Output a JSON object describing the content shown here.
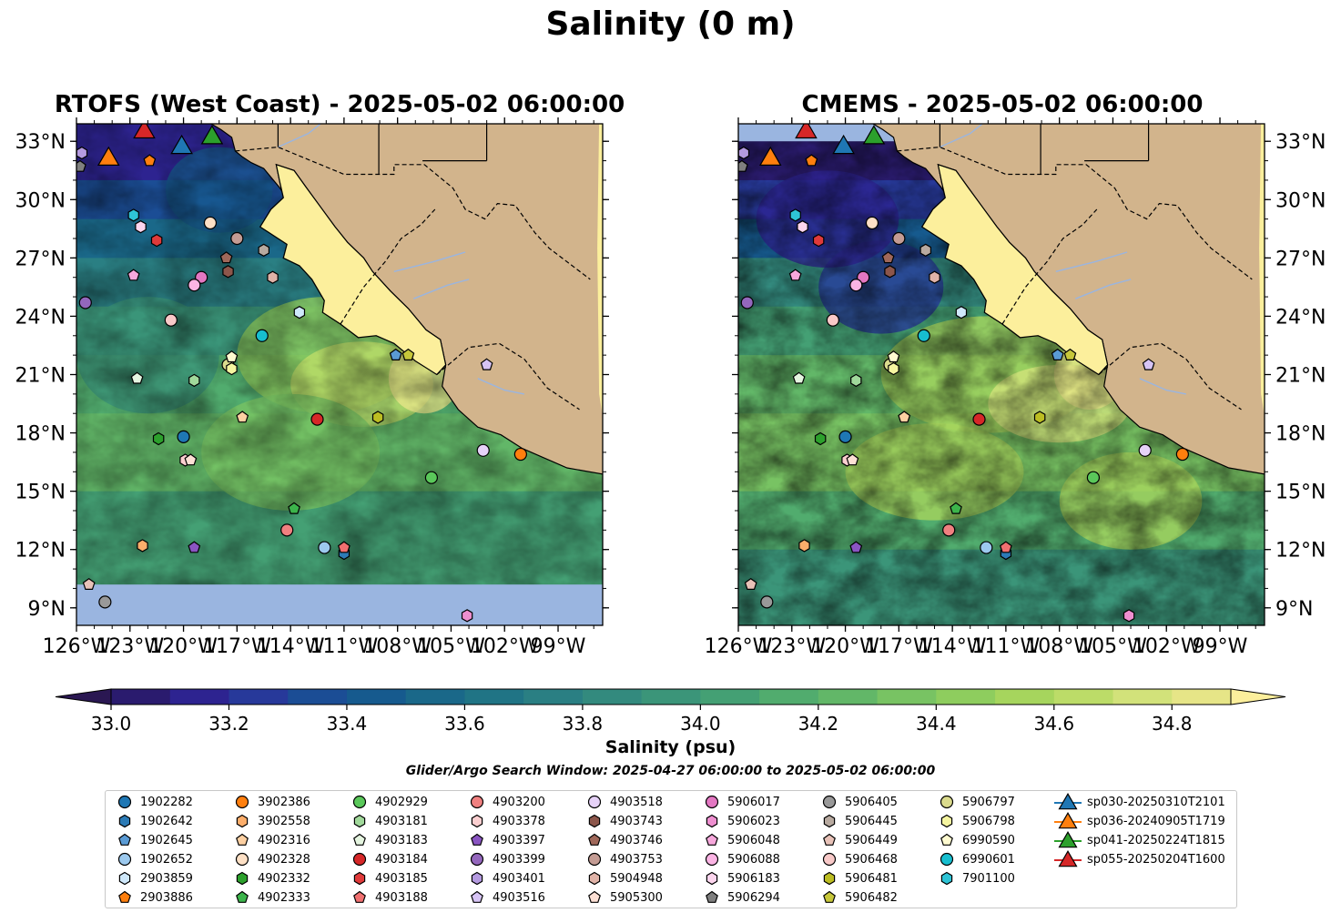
{
  "figure": {
    "title": "Salinity (0 m)",
    "window_note": "Glider/Argo Search Window: 2025-04-27 06:00:00 to 2025-05-02 06:00:00"
  },
  "colorbar": {
    "label": "Salinity (psu)",
    "min": 33.0,
    "max": 34.9,
    "step": 0.1,
    "ticks": [
      "33.0",
      "33.2",
      "33.4",
      "33.6",
      "33.8",
      "34.0",
      "34.2",
      "34.4",
      "34.6",
      "34.8"
    ],
    "under_color": "#2a1752",
    "over_color": "#fcef9c",
    "colors": [
      "#2a1b6e",
      "#2d2390",
      "#27399a",
      "#1b4d95",
      "#165a8e",
      "#1a6889",
      "#207485",
      "#2a7f83",
      "#338a7e",
      "#3b9579",
      "#44a074",
      "#51ac6e",
      "#62b768",
      "#78c363",
      "#8ecd5e",
      "#a6d55d",
      "#bcdc68",
      "#d2e27a",
      "#e6e587"
    ]
  },
  "chart_data": [
    {
      "type": "heatmap",
      "title": "RTOFS (West Coast) - 2025-05-02 06:00:00",
      "variable": "sea surface salinity",
      "units": "psu",
      "xlim": [
        -126,
        -96.5
      ],
      "ylim": [
        8.1,
        33.9
      ],
      "xticks": [
        "126°W",
        "123°W",
        "120°W",
        "117°W",
        "114°W",
        "111°W",
        "108°W",
        "105°W",
        "102°W",
        "99°W"
      ],
      "yticks": [
        "9°N",
        "12°N",
        "15°N",
        "18°N",
        "21°N",
        "24°N",
        "27°N",
        "30°N",
        "33°N"
      ],
      "y_axis_side": "left",
      "no_data_below_lat": 10.2,
      "no_data_color": "#9ab5e0",
      "land_color": "#d2b48c",
      "field_summary": "low salinity (33.0-33.3) in the north-west near 30-33°N, 33.5-33.9 along Baja California coast, 34.1-34.5 over the central and southern area, >34.8 in the Gulf of California and near Cabo Corrientes"
    },
    {
      "type": "heatmap",
      "title": "CMEMS - 2025-05-02 06:00:00",
      "variable": "sea surface salinity",
      "units": "psu",
      "xlim": [
        -126,
        -96.5
      ],
      "ylim": [
        8.1,
        33.9
      ],
      "xticks": [
        "126°W",
        "123°W",
        "120°W",
        "117°W",
        "114°W",
        "111°W",
        "108°W",
        "105°W",
        "102°W",
        "99°W"
      ],
      "yticks": [
        "9°N",
        "12°N",
        "15°N",
        "18°N",
        "21°N",
        "24°N",
        "27°N",
        "30°N",
        "33°N"
      ],
      "y_axis_side": "right",
      "no_data_above_lat": 33.0,
      "no_data_color": "#9ab5e0",
      "land_color": "#d2b48c",
      "field_summary": "fresher (33.0-33.2) water north of 27°N offshore, a fresh tongue reaching 25°N near 118°W, 34.2-34.7 filaments south of 22°N, >34.8 in the Gulf of California"
    }
  ],
  "instruments": [
    {
      "id": "1902282",
      "marker": "circle",
      "color": "#1f77b4",
      "lon": -120.0,
      "lat": 17.8
    },
    {
      "id": "1902642",
      "marker": "hexagon",
      "color": "#2c7bb6",
      "lon": -111.0,
      "lat": 11.8
    },
    {
      "id": "1902645",
      "marker": "pentagon",
      "color": "#5a9bd5",
      "lon": -108.1,
      "lat": 22.0
    },
    {
      "id": "1902652",
      "marker": "circle",
      "color": "#9cc9ee",
      "lon": -112.1,
      "lat": 12.1
    },
    {
      "id": "2903859",
      "marker": "hexagon",
      "color": "#cfe8fb",
      "lon": -113.5,
      "lat": 24.2
    },
    {
      "id": "2903886",
      "marker": "pentagon",
      "color": "#ff7f0e",
      "lon": -121.9,
      "lat": 32.0
    },
    {
      "id": "3902386",
      "marker": "circle",
      "color": "#ff7f0e",
      "lon": -101.1,
      "lat": 16.9
    },
    {
      "id": "3902558",
      "marker": "hexagon",
      "color": "#fdae6b",
      "lon": -122.3,
      "lat": 12.2
    },
    {
      "id": "4902316",
      "marker": "pentagon",
      "color": "#fdd0a2",
      "lon": -116.7,
      "lat": 18.8
    },
    {
      "id": "4902328",
      "marker": "circle",
      "color": "#fde0c5",
      "lon": -118.5,
      "lat": 28.8
    },
    {
      "id": "4902332",
      "marker": "hexagon",
      "color": "#2ca02c",
      "lon": -121.4,
      "lat": 17.7
    },
    {
      "id": "4902333",
      "marker": "pentagon",
      "color": "#3cb44b",
      "lon": -113.8,
      "lat": 14.1
    },
    {
      "id": "4902929",
      "marker": "circle",
      "color": "#5ac85a",
      "lon": -106.1,
      "lat": 15.7
    },
    {
      "id": "4903181",
      "marker": "hexagon",
      "color": "#a1d99b",
      "lon": -119.4,
      "lat": 20.7
    },
    {
      "id": "4903183",
      "marker": "pentagon",
      "color": "#e5f5e0",
      "lon": -122.6,
      "lat": 20.8
    },
    {
      "id": "4903184",
      "marker": "circle",
      "color": "#d62728",
      "lon": -112.5,
      "lat": 18.7
    },
    {
      "id": "4903185",
      "marker": "hexagon",
      "color": "#e03a3a",
      "lon": -121.5,
      "lat": 27.9
    },
    {
      "id": "4903188",
      "marker": "pentagon",
      "color": "#f07070",
      "lon": -111.0,
      "lat": 12.1
    },
    {
      "id": "4903200",
      "marker": "circle",
      "color": "#f08080",
      "lon": -114.2,
      "lat": 13.0
    },
    {
      "id": "4903378",
      "marker": "hexagon",
      "color": "#fbcfd0",
      "lon": -119.9,
      "lat": 16.6
    },
    {
      "id": "4903397",
      "marker": "pentagon",
      "color": "#8a55c2",
      "lon": -119.4,
      "lat": 12.1
    },
    {
      "id": "4903399",
      "marker": "circle",
      "color": "#9467bd",
      "lon": -125.5,
      "lat": 24.7
    },
    {
      "id": "4903401",
      "marker": "hexagon",
      "color": "#b49ae0",
      "lon": -125.7,
      "lat": 32.4
    },
    {
      "id": "4903516",
      "marker": "pentagon",
      "color": "#d7c4f5",
      "lon": -103.0,
      "lat": 21.5
    },
    {
      "id": "4903518",
      "marker": "circle",
      "color": "#e6d2f8",
      "lon": -103.2,
      "lat": 17.1
    },
    {
      "id": "4903743",
      "marker": "hexagon",
      "color": "#8c564b",
      "lon": -117.5,
      "lat": 26.3
    },
    {
      "id": "4903746",
      "marker": "pentagon",
      "color": "#a0685a",
      "lon": -117.6,
      "lat": 27.0
    },
    {
      "id": "4903753",
      "marker": "circle",
      "color": "#c49c94",
      "lon": -117.0,
      "lat": 28.0
    },
    {
      "id": "5904948",
      "marker": "hexagon",
      "color": "#e0b3a8",
      "lon": -115.0,
      "lat": 26.0
    },
    {
      "id": "5905300",
      "marker": "pentagon",
      "color": "#fde0d5",
      "lon": -119.6,
      "lat": 16.6
    },
    {
      "id": "5906017",
      "marker": "circle",
      "color": "#e377c2",
      "lon": -119.0,
      "lat": 26.0
    },
    {
      "id": "5906023",
      "marker": "hexagon",
      "color": "#ee8fd0",
      "lon": -104.1,
      "lat": 8.6
    },
    {
      "id": "5906048",
      "marker": "pentagon",
      "color": "#f7a8dc",
      "lon": -122.8,
      "lat": 26.1
    },
    {
      "id": "5906088",
      "marker": "circle",
      "color": "#fbb4e4",
      "lon": -119.4,
      "lat": 25.6
    },
    {
      "id": "5906183",
      "marker": "hexagon",
      "color": "#fdd5ee",
      "lon": -122.4,
      "lat": 28.6
    },
    {
      "id": "5906294",
      "marker": "pentagon",
      "color": "#7f7f7f",
      "lon": -125.8,
      "lat": 31.7
    },
    {
      "id": "5906405",
      "marker": "circle",
      "color": "#999999",
      "lon": -124.4,
      "lat": 9.3
    },
    {
      "id": "5906445",
      "marker": "hexagon",
      "color": "#b8aaa0",
      "lon": -115.5,
      "lat": 27.4
    },
    {
      "id": "5906449",
      "marker": "pentagon",
      "color": "#e8c2b8",
      "lon": -125.3,
      "lat": 10.2
    },
    {
      "id": "5906468",
      "marker": "circle",
      "color": "#f8c9c8",
      "lon": -120.7,
      "lat": 23.8
    },
    {
      "id": "5906481",
      "marker": "hexagon",
      "color": "#bcbd22",
      "lon": -109.1,
      "lat": 18.8
    },
    {
      "id": "5906482",
      "marker": "pentagon",
      "color": "#c7c73a",
      "lon": -107.4,
      "lat": 22.0
    },
    {
      "id": "5906797",
      "marker": "circle",
      "color": "#dbdb8d",
      "lon": -117.5,
      "lat": 21.5
    },
    {
      "id": "5906798",
      "marker": "hexagon",
      "color": "#f5f5a0",
      "lon": -117.3,
      "lat": 21.3
    },
    {
      "id": "6990590",
      "marker": "pentagon",
      "color": "#fffbd0",
      "lon": -117.3,
      "lat": 21.9
    },
    {
      "id": "6990601",
      "marker": "circle",
      "color": "#17becf",
      "lon": -115.6,
      "lat": 23.0
    },
    {
      "id": "7901100",
      "marker": "hexagon",
      "color": "#2ec4d6",
      "lon": -122.8,
      "lat": 29.2
    },
    {
      "id": "sp030-20250310T2101",
      "marker": "triangle",
      "color": "#1f77b4",
      "lon": -120.1,
      "lat": 32.8
    },
    {
      "id": "sp036-20240905T1719",
      "marker": "triangle",
      "color": "#ff7f0e",
      "lon": -124.2,
      "lat": 32.2
    },
    {
      "id": "sp041-20250224T1815",
      "marker": "triangle",
      "color": "#2ca02c",
      "lon": -118.4,
      "lat": 33.3
    },
    {
      "id": "sp055-20250204T1600",
      "marker": "triangle",
      "color": "#d62728",
      "lon": -122.2,
      "lat": 33.6
    }
  ]
}
